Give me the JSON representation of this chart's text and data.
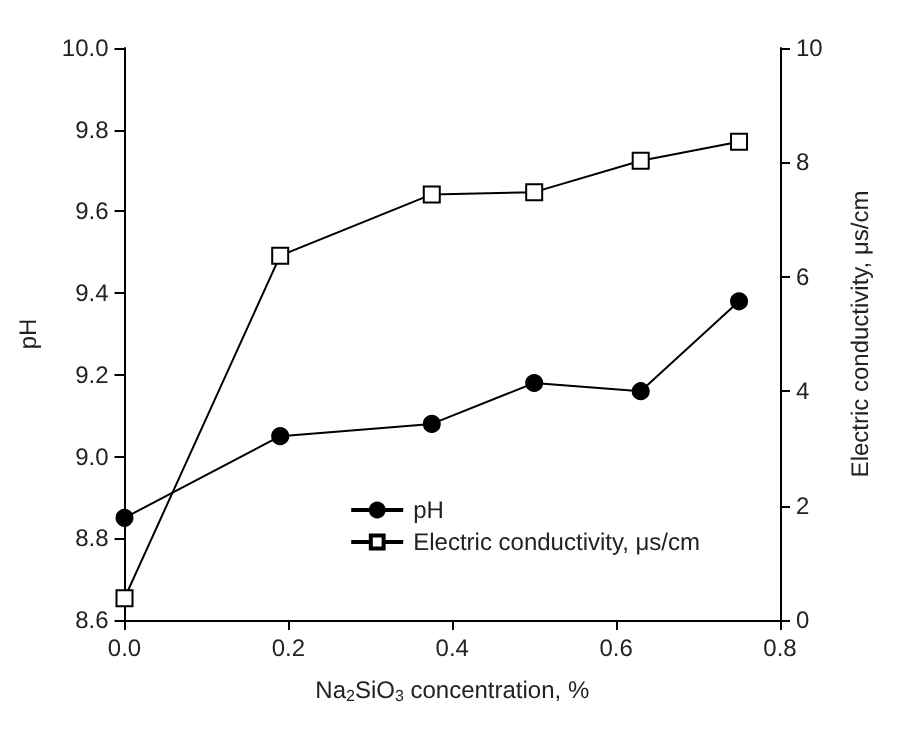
{
  "chart_data": {
    "type": "line",
    "xlabel": "Na$_{2}$SiO$_{3}$ concentration, %",
    "ylabel": "pH",
    "y2label": "Electric conductivity, μs/cm",
    "x": [
      0,
      0.19,
      0.375,
      0.5,
      0.63,
      0.75
    ],
    "series": [
      {
        "name": "pH",
        "color": "#000000",
        "marker": "circle",
        "values": [
          8.85,
          9.05,
          9.08,
          9.18,
          9.16,
          9.38
        ]
      },
      {
        "name": "Electric conductivity, μs/cm",
        "color": "#000000",
        "marker": "square",
        "axis": "y2",
        "values": [
          0.38,
          6.37,
          7.44,
          7.48,
          8.03,
          8.36
        ]
      }
    ],
    "xlim": [
      0,
      0.8
    ],
    "xticks": [
      {
        "value": 0,
        "label": "0.0"
      },
      0.2,
      0.4,
      0.6,
      0.8
    ],
    "ylim": [
      8.6,
      10
    ],
    "yticks": [
      8.6,
      8.8,
      {
        "value": 9,
        "label": "9.0"
      },
      9.2,
      9.4,
      9.6,
      9.8,
      {
        "value": 10,
        "label": "10.0"
      }
    ],
    "y2lim": [
      0,
      10
    ],
    "y2ticks": [
      0,
      2,
      4,
      6,
      8,
      10
    ],
    "grid": false,
    "legend": "bottom right"
  }
}
